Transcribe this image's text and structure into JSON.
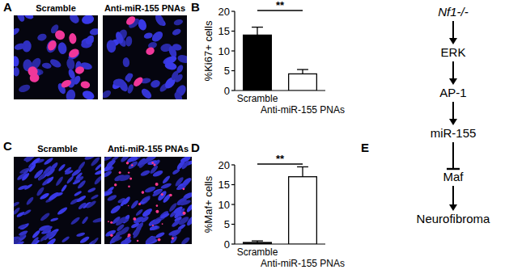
{
  "micrographs": [
    {
      "label": "A",
      "titles": [
        "Scramble",
        "Anti-miR-155 PNAs"
      ]
    },
    {
      "label": "C",
      "titles": [
        "Scramble",
        "Anti-miR-155 PNAs"
      ]
    }
  ],
  "chart_panel_labels": [
    "B",
    "D"
  ],
  "chart_data": [
    {
      "type": "bar",
      "y_label": "%Ki67+ cells",
      "categories": [
        "Scramble",
        "Anti-miR-155 PNAs"
      ],
      "values": [
        14,
        4.2
      ],
      "errors": [
        2,
        1.1
      ],
      "colors": [
        "#000000",
        "#ffffff"
      ],
      "ylim": [
        0,
        20
      ],
      "yticks": [
        0,
        5,
        10,
        15,
        20
      ],
      "annotation": "**"
    },
    {
      "type": "bar",
      "y_label": "%Maf+ cells",
      "categories": [
        "Scramble",
        "Anti-miR-155 PNAs"
      ],
      "values": [
        0.4,
        17
      ],
      "errors": [
        0.4,
        2.5
      ],
      "colors": [
        "#000000",
        "#ffffff"
      ],
      "ylim": [
        0,
        20
      ],
      "yticks": [
        0,
        5,
        10,
        15,
        20
      ],
      "annotation": "**"
    }
  ],
  "diagram": {
    "label": "E",
    "nodes": [
      "Nf1-/-",
      "ERK",
      "AP-1",
      "miR-155",
      "Maf",
      "Neurofibroma"
    ],
    "edges": [
      {
        "from": 0,
        "to": 1,
        "type": "activate"
      },
      {
        "from": 1,
        "to": 2,
        "type": "activate"
      },
      {
        "from": 2,
        "to": 3,
        "type": "activate"
      },
      {
        "from": 3,
        "to": 4,
        "type": "inhibit"
      },
      {
        "from": 4,
        "to": 5,
        "type": "activate"
      }
    ]
  }
}
